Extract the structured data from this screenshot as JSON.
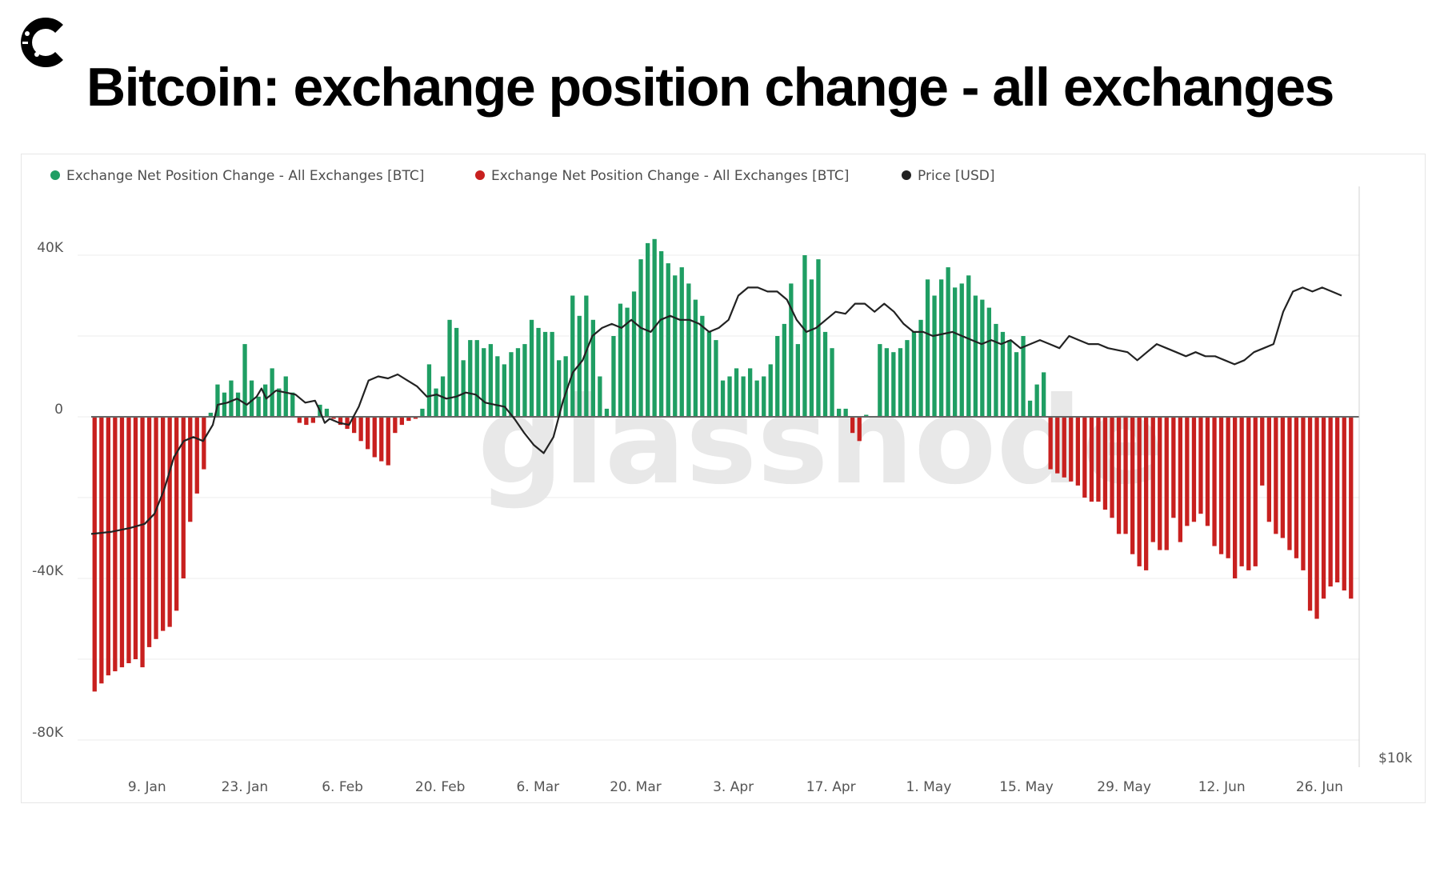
{
  "headline": "Bitcoin: exchange position change - all exchanges",
  "watermark": "glassnode",
  "logo_icon": "c-logo-icon",
  "chart_data": {
    "type": "bar",
    "legend": [
      {
        "name": "Exchange Net Position Change - All Exchanges [BTC]",
        "color": "#1f9e63"
      },
      {
        "name": "Exchange Net Position Change - All Exchanges [BTC]",
        "color": "#c8201f"
      },
      {
        "name": "Price [USD]",
        "color": "#222222"
      }
    ],
    "legend_position": "top-left",
    "grid": true,
    "ylim": [
      -80000,
      40000
    ],
    "y_ticks": [
      {
        "value": 40000,
        "label": "40K"
      },
      {
        "value": 0,
        "label": "0"
      },
      {
        "value": -40000,
        "label": "-40K"
      },
      {
        "value": -80000,
        "label": "-80K"
      }
    ],
    "right_axis_label": "$10k",
    "x_tick_labels": [
      "9. Jan",
      "23. Jan",
      "6. Feb",
      "20. Feb",
      "6. Mar",
      "20. Mar",
      "3. Apr",
      "17. Apr",
      "1. May",
      "15. May",
      "29. May",
      "12. Jun",
      "26. Jun"
    ],
    "x_tick_days": [
      8,
      22,
      36,
      50,
      64,
      78,
      92,
      106,
      120,
      134,
      148,
      162,
      176
    ],
    "x_start_day": 0,
    "x_end_day": 181,
    "net_position_change_btc": [
      -68000,
      -66000,
      -64000,
      -63000,
      -62000,
      -61000,
      -60000,
      -62000,
      -57000,
      -55000,
      -53000,
      -52000,
      -48000,
      -40000,
      -26000,
      -19000,
      -13000,
      1000,
      8000,
      6000,
      9000,
      6000,
      18000,
      9000,
      5000,
      8000,
      12000,
      7000,
      10000,
      6000,
      -1500,
      -2000,
      -1500,
      3000,
      2000,
      -500,
      -2000,
      -3000,
      -4000,
      -6000,
      -8000,
      -10000,
      -11000,
      -12000,
      -4000,
      -2000,
      -1000,
      -500,
      2000,
      13000,
      7000,
      10000,
      24000,
      22000,
      14000,
      19000,
      19000,
      17000,
      18000,
      15000,
      13000,
      16000,
      17000,
      18000,
      24000,
      22000,
      21000,
      21000,
      14000,
      15000,
      30000,
      25000,
      30000,
      24000,
      10000,
      2000,
      20000,
      28000,
      27000,
      31000,
      39000,
      43000,
      44000,
      41000,
      38000,
      35000,
      37000,
      33000,
      29000,
      25000,
      21000,
      19000,
      9000,
      10000,
      12000,
      10000,
      12000,
      9000,
      10000,
      13000,
      20000,
      23000,
      33000,
      18000,
      40000,
      34000,
      39000,
      21000,
      17000,
      2000,
      2000,
      -4000,
      -6000,
      500,
      0,
      18000,
      17000,
      16000,
      17000,
      19000,
      21000,
      24000,
      34000,
      30000,
      34000,
      37000,
      32000,
      33000,
      35000,
      30000,
      29000,
      27000,
      23000,
      21000,
      19000,
      16000,
      20000,
      4000,
      8000,
      11000,
      -13000,
      -14000,
      -15000,
      -16000,
      -17000,
      -20000,
      -21000,
      -21000,
      -23000,
      -25000,
      -29000,
      -29000,
      -34000,
      -37000,
      -38000,
      -31000,
      -33000,
      -33000,
      -25000,
      -31000,
      -27000,
      -26000,
      -24000,
      -27000,
      -32000,
      -34000,
      -35000,
      -40000,
      -37000,
      -38000,
      -37000,
      -17000,
      -26000,
      -29000,
      -30000,
      -33000,
      -35000,
      -38000,
      -48000,
      -50000,
      -45000,
      -42000,
      -41000,
      -43000,
      -45000
    ],
    "price_line": [
      [
        0,
        -29000
      ],
      [
        4,
        -28500
      ],
      [
        8,
        -27500
      ],
      [
        11,
        -26500
      ],
      [
        13,
        -24000
      ],
      [
        15,
        -18000
      ],
      [
        17,
        -10000
      ],
      [
        19,
        -6000
      ],
      [
        21,
        -5000
      ],
      [
        23,
        -6000
      ],
      [
        25,
        -2000
      ],
      [
        26,
        3000
      ],
      [
        28,
        3500
      ],
      [
        30,
        4500
      ],
      [
        32,
        3000
      ],
      [
        34,
        5000
      ],
      [
        35,
        7000
      ],
      [
        36,
        4500
      ],
      [
        38,
        6500
      ],
      [
        40,
        6000
      ],
      [
        42,
        5500
      ],
      [
        44,
        3500
      ],
      [
        46,
        4000
      ],
      [
        47,
        1500
      ],
      [
        48,
        -1500
      ],
      [
        49,
        -500
      ],
      [
        51,
        -1500
      ],
      [
        53,
        -2000
      ],
      [
        55,
        2500
      ],
      [
        57,
        9000
      ],
      [
        59,
        10000
      ],
      [
        61,
        9500
      ],
      [
        63,
        10500
      ],
      [
        65,
        9000
      ],
      [
        67,
        7500
      ],
      [
        69,
        5000
      ],
      [
        71,
        5500
      ],
      [
        73,
        4500
      ],
      [
        75,
        5000
      ],
      [
        77,
        6000
      ],
      [
        79,
        5500
      ],
      [
        81,
        3500
      ],
      [
        83,
        3000
      ],
      [
        85,
        2500
      ],
      [
        87,
        -500
      ],
      [
        89,
        -4000
      ],
      [
        91,
        -7000
      ],
      [
        93,
        -9000
      ],
      [
        95,
        -5000
      ],
      [
        97,
        4000
      ],
      [
        99,
        11000
      ],
      [
        101,
        14000
      ],
      [
        103,
        20000
      ],
      [
        105,
        22000
      ],
      [
        107,
        23000
      ],
      [
        109,
        22000
      ],
      [
        111,
        24000
      ],
      [
        113,
        22000
      ],
      [
        115,
        21000
      ],
      [
        117,
        24000
      ],
      [
        119,
        25000
      ],
      [
        121,
        24000
      ],
      [
        123,
        24000
      ],
      [
        125,
        23000
      ],
      [
        127,
        21000
      ],
      [
        129,
        22000
      ],
      [
        131,
        24000
      ],
      [
        133,
        30000
      ],
      [
        135,
        32000
      ],
      [
        137,
        32000
      ],
      [
        139,
        31000
      ],
      [
        141,
        31000
      ],
      [
        143,
        29000
      ],
      [
        145,
        24000
      ],
      [
        147,
        21000
      ],
      [
        149,
        22000
      ],
      [
        151,
        24000
      ],
      [
        153,
        26000
      ],
      [
        155,
        25500
      ],
      [
        157,
        28000
      ],
      [
        159,
        28000
      ],
      [
        161,
        26000
      ],
      [
        163,
        28000
      ],
      [
        165,
        26000
      ],
      [
        167,
        23000
      ],
      [
        169,
        21000
      ],
      [
        171,
        21000
      ],
      [
        173,
        20000
      ],
      [
        175,
        20500
      ],
      [
        177,
        21000
      ],
      [
        179,
        20000
      ],
      [
        181,
        19000
      ],
      [
        183,
        18000
      ],
      [
        185,
        19000
      ],
      [
        187,
        18000
      ],
      [
        189,
        19000
      ],
      [
        191,
        17000
      ],
      [
        193,
        18000
      ],
      [
        195,
        19000
      ],
      [
        197,
        18000
      ],
      [
        199,
        17000
      ],
      [
        201,
        20000
      ],
      [
        203,
        19000
      ],
      [
        205,
        18000
      ],
      [
        207,
        18000
      ],
      [
        209,
        17000
      ],
      [
        211,
        16500
      ],
      [
        213,
        16000
      ],
      [
        215,
        14000
      ],
      [
        217,
        16000
      ],
      [
        219,
        18000
      ],
      [
        221,
        17000
      ],
      [
        223,
        16000
      ],
      [
        225,
        15000
      ],
      [
        227,
        16000
      ],
      [
        229,
        15000
      ],
      [
        231,
        15000
      ],
      [
        233,
        14000
      ],
      [
        235,
        13000
      ],
      [
        237,
        14000
      ],
      [
        239,
        16000
      ],
      [
        241,
        17000
      ],
      [
        243,
        18000
      ],
      [
        245,
        26000
      ],
      [
        247,
        31000
      ],
      [
        249,
        32000
      ],
      [
        251,
        31000
      ],
      [
        253,
        32000
      ],
      [
        255,
        31000
      ],
      [
        257,
        30000
      ]
    ]
  }
}
